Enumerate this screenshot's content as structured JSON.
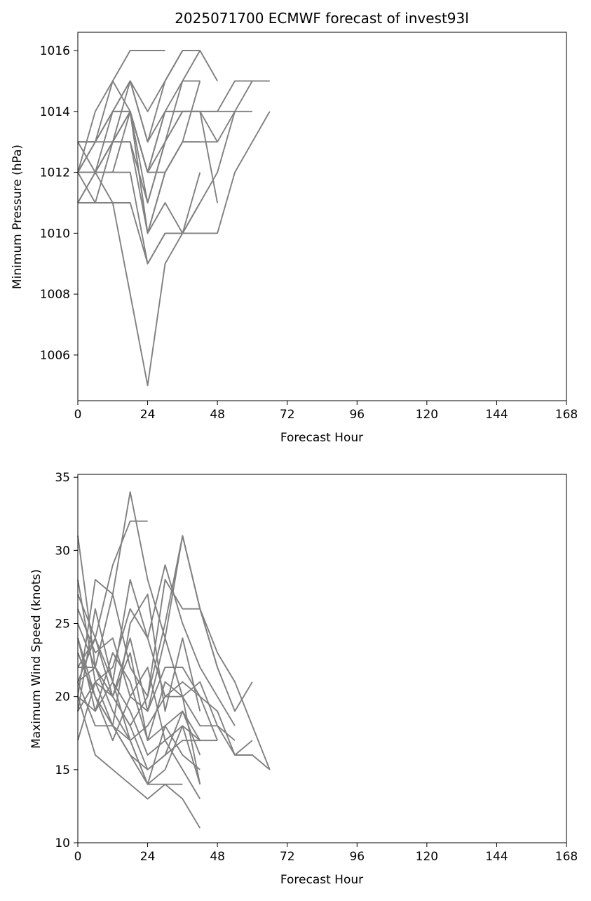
{
  "figure": {
    "background": "#ffffff",
    "line_color": "#808080"
  },
  "chart_data": [
    {
      "type": "line",
      "title": "2025071700 ECMWF forecast of invest93l",
      "xlabel": "Forecast Hour",
      "ylabel": "Minimum Pressure (hPa)",
      "xlim": [
        0,
        168
      ],
      "ylim": [
        1004.5,
        1016.6
      ],
      "xticks": [
        0,
        24,
        48,
        72,
        96,
        120,
        144,
        168
      ],
      "yticks": [
        1006,
        1008,
        1010,
        1012,
        1014,
        1016
      ],
      "grid": false,
      "series": [
        {
          "x": [
            0,
            6,
            12,
            18,
            24,
            30
          ],
          "y": [
            1012,
            1014,
            1015,
            1016,
            1016,
            1016
          ]
        },
        {
          "x": [
            0,
            6,
            12,
            18,
            24,
            30,
            36,
            42
          ],
          "y": [
            1013,
            1013,
            1014,
            1015,
            1014,
            1015,
            1016,
            1016
          ]
        },
        {
          "x": [
            0,
            6,
            12,
            18,
            24,
            30,
            36,
            42,
            48
          ],
          "y": [
            1012,
            1012,
            1013,
            1015,
            1013,
            1014,
            1015,
            1016,
            1015
          ]
        },
        {
          "x": [
            0,
            6,
            12,
            18,
            24,
            30,
            36,
            42,
            48,
            54,
            60,
            66
          ],
          "y": [
            1011,
            1011,
            1013,
            1014,
            1012,
            1013,
            1014,
            1014,
            1014,
            1015,
            1015,
            1015
          ]
        },
        {
          "x": [
            0,
            6,
            12,
            18,
            24,
            30,
            36,
            42,
            48,
            54,
            60
          ],
          "y": [
            1012,
            1013,
            1014,
            1014,
            1012,
            1014,
            1014,
            1014,
            1014,
            1014,
            1014
          ]
        },
        {
          "x": [
            0,
            6,
            12,
            18,
            24,
            30,
            36,
            42
          ],
          "y": [
            1013,
            1013,
            1015,
            1014,
            1011,
            1013,
            1015,
            1015
          ]
        },
        {
          "x": [
            0,
            6,
            12,
            18,
            24,
            30,
            36
          ],
          "y": [
            1012,
            1012,
            1014,
            1015,
            1013,
            1015,
            1016
          ]
        },
        {
          "x": [
            0,
            6,
            12,
            18,
            24,
            30,
            36,
            42
          ],
          "y": [
            1011,
            1012,
            1013,
            1014,
            1010,
            1012,
            1013,
            1015
          ]
        },
        {
          "x": [
            0,
            6,
            12,
            18,
            24,
            30,
            36,
            42,
            48
          ],
          "y": [
            1012,
            1013,
            1013,
            1013,
            1011,
            1013,
            1014,
            1014,
            1013
          ]
        },
        {
          "x": [
            0,
            6,
            12,
            18,
            24,
            30,
            36,
            42,
            48,
            54,
            60
          ],
          "y": [
            1011,
            1012,
            1012,
            1014,
            1012,
            1012,
            1013,
            1013,
            1013,
            1014,
            1015
          ]
        },
        {
          "x": [
            0,
            6,
            12,
            18,
            24,
            30,
            36,
            42,
            48
          ],
          "y": [
            1012,
            1012,
            1013,
            1014,
            1012,
            1014,
            1014,
            1014,
            1011
          ]
        },
        {
          "x": [
            0,
            6,
            12,
            18,
            24,
            30,
            36,
            42
          ],
          "y": [
            1013,
            1013,
            1014,
            1014,
            1010,
            1011,
            1010,
            1012
          ]
        },
        {
          "x": [
            0,
            6,
            12,
            18,
            24,
            30,
            36,
            42,
            48,
            54,
            60,
            66
          ],
          "y": [
            1012,
            1012,
            1012,
            1012,
            1009,
            1010,
            1010,
            1010,
            1010,
            1012,
            1013,
            1014
          ]
        },
        {
          "x": [
            0,
            6,
            12,
            18,
            24,
            30,
            36,
            42,
            48,
            54
          ],
          "y": [
            1012,
            1011,
            1011,
            1011,
            1009,
            1010,
            1010,
            1011,
            1012,
            1014
          ]
        },
        {
          "x": [
            0,
            6,
            12,
            18,
            24,
            30,
            36,
            42
          ],
          "y": [
            1012,
            1012,
            1011,
            1008,
            1005,
            1009,
            1010,
            1011
          ]
        },
        {
          "x": [
            0,
            6,
            12,
            18,
            24,
            30,
            36,
            42
          ],
          "y": [
            1013,
            1012,
            1013,
            1013,
            1010,
            1012,
            1013,
            1013
          ]
        }
      ]
    },
    {
      "type": "line",
      "title": "",
      "xlabel": "Forecast Hour",
      "ylabel": "Maximum Wind Speed (knots)",
      "xlim": [
        0,
        168
      ],
      "ylim": [
        10,
        35.2
      ],
      "xticks": [
        0,
        24,
        48,
        72,
        96,
        120,
        144,
        168
      ],
      "yticks": [
        10,
        15,
        20,
        25,
        30,
        35
      ],
      "grid": false,
      "series": [
        {
          "x": [
            0,
            6,
            12,
            18,
            24
          ],
          "y": [
            22,
            24,
            29,
            32,
            32
          ]
        },
        {
          "x": [
            0,
            6,
            12,
            18,
            24,
            30,
            36,
            42
          ],
          "y": [
            21,
            22,
            27,
            34,
            28,
            24,
            20,
            14
          ]
        },
        {
          "x": [
            0,
            6,
            12,
            18,
            24,
            30,
            36,
            42,
            48
          ],
          "y": [
            31,
            22,
            20,
            24,
            19,
            24,
            31,
            26,
            22
          ]
        },
        {
          "x": [
            0,
            6,
            12,
            18,
            24,
            30,
            36,
            42,
            48,
            54,
            60
          ],
          "y": [
            20,
            28,
            27,
            22,
            20,
            25,
            31,
            26,
            22,
            19,
            21
          ]
        },
        {
          "x": [
            0,
            6,
            12,
            18,
            24,
            30,
            36,
            42,
            48,
            54,
            60,
            66
          ],
          "y": [
            25,
            22,
            20,
            18,
            20,
            28,
            26,
            26,
            23,
            21,
            18,
            15
          ]
        },
        {
          "x": [
            0,
            6,
            12,
            18,
            24,
            30,
            36,
            42,
            48,
            54
          ],
          "y": [
            27,
            24,
            21,
            28,
            24,
            29,
            25,
            22,
            20,
            18
          ]
        },
        {
          "x": [
            0,
            6,
            12,
            18,
            24,
            30,
            36,
            42,
            48,
            54,
            60,
            66
          ],
          "y": [
            19,
            21,
            22,
            26,
            24,
            20,
            21,
            20,
            19,
            16,
            16,
            15
          ]
        },
        {
          "x": [
            0,
            6,
            12,
            18,
            24,
            30,
            36,
            42
          ],
          "y": [
            23,
            20,
            18,
            25,
            27,
            19,
            24,
            19
          ]
        },
        {
          "x": [
            0,
            6,
            12,
            18,
            24,
            30,
            36,
            42,
            48
          ],
          "y": [
            26,
            23,
            24,
            20,
            19,
            22,
            22,
            20,
            17
          ]
        },
        {
          "x": [
            0,
            6,
            12,
            18,
            24,
            30,
            36,
            42,
            48,
            54
          ],
          "y": [
            17,
            21,
            20,
            23,
            17,
            21,
            20,
            21,
            18,
            17
          ]
        },
        {
          "x": [
            0,
            6,
            12,
            18,
            24,
            30,
            36,
            42
          ],
          "y": [
            24,
            19,
            21,
            17,
            14,
            18,
            19,
            17
          ]
        },
        {
          "x": [
            0,
            6,
            12,
            18,
            24,
            30,
            36,
            42
          ],
          "y": [
            20,
            16,
            15,
            14,
            13,
            14,
            13,
            11
          ]
        },
        {
          "x": [
            0,
            6,
            12,
            18,
            24,
            30,
            36,
            42,
            48
          ],
          "y": [
            21,
            24,
            20,
            18,
            15,
            16,
            17,
            17,
            17
          ]
        },
        {
          "x": [
            0,
            6,
            12,
            18,
            24,
            30,
            36,
            42
          ],
          "y": [
            19,
            26,
            21,
            19,
            16,
            17,
            15,
            13
          ]
        },
        {
          "x": [
            0,
            6,
            12,
            18,
            24,
            30,
            36,
            42,
            48,
            54,
            60
          ],
          "y": [
            22,
            22,
            19,
            17,
            18,
            20,
            20,
            18,
            18,
            16,
            17
          ]
        },
        {
          "x": [
            0,
            6,
            12,
            18,
            24,
            30,
            36,
            42
          ],
          "y": [
            28,
            21,
            18,
            16,
            15,
            16,
            19,
            16
          ]
        },
        {
          "x": [
            0,
            6,
            12,
            18,
            24,
            30,
            36
          ],
          "y": [
            23,
            20,
            18,
            17,
            14,
            14,
            14
          ]
        },
        {
          "x": [
            0,
            6,
            12,
            18,
            24,
            30,
            36,
            42
          ],
          "y": [
            21,
            18,
            18,
            16,
            14,
            15,
            18,
            14
          ]
        },
        {
          "x": [
            0,
            6,
            12,
            18,
            24,
            30,
            36,
            42
          ],
          "y": [
            20,
            19,
            23,
            21,
            17,
            18,
            16,
            15
          ]
        },
        {
          "x": [
            0,
            6,
            12,
            18,
            24,
            30,
            36,
            42
          ],
          "y": [
            24,
            20,
            17,
            20,
            22,
            17,
            18,
            17
          ]
        }
      ]
    }
  ]
}
